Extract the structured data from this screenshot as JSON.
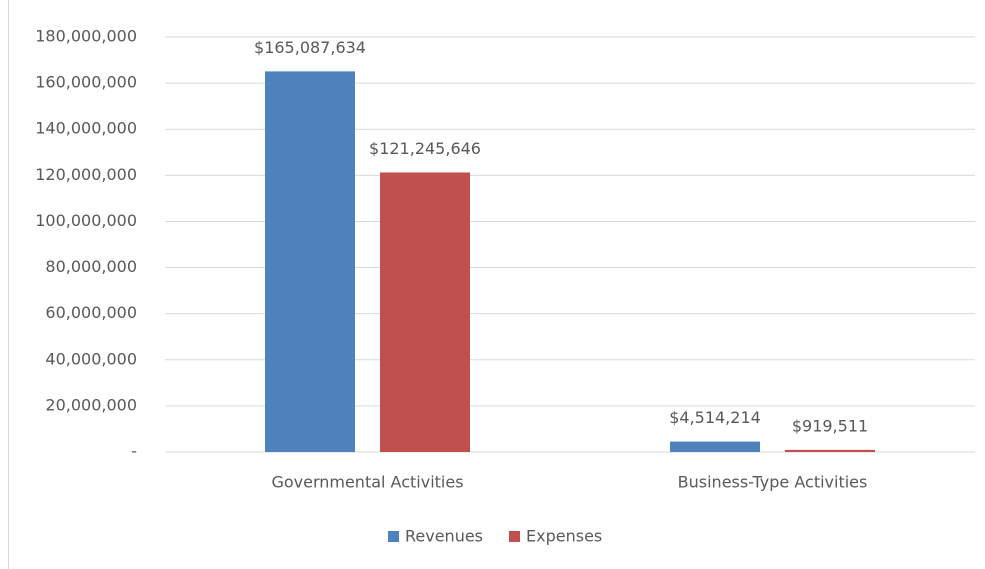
{
  "chart_data": {
    "type": "bar",
    "categories": [
      "Governmental Activities",
      "Business-Type Activities"
    ],
    "series": [
      {
        "name": "Revenues",
        "color": "#4f81bd",
        "values": [
          165087634,
          4514214
        ],
        "value_labels": [
          "$165,087,634",
          "$4,514,214"
        ]
      },
      {
        "name": "Expenses",
        "color": "#c0504d",
        "values": [
          121245646,
          919511
        ],
        "value_labels": [
          "$121,245,646",
          "$919,511"
        ]
      }
    ],
    "ylim": [
      0,
      180000000
    ],
    "yticks": [
      {
        "value": 0,
        "label": "-"
      },
      {
        "value": 20000000,
        "label": "20,000,000"
      },
      {
        "value": 40000000,
        "label": "40,000,000"
      },
      {
        "value": 60000000,
        "label": "60,000,000"
      },
      {
        "value": 80000000,
        "label": "80,000,000"
      },
      {
        "value": 100000000,
        "label": "100,000,000"
      },
      {
        "value": 120000000,
        "label": "120,000,000"
      },
      {
        "value": 140000000,
        "label": "140,000,000"
      },
      {
        "value": 160000000,
        "label": "160,000,000"
      },
      {
        "value": 180000000,
        "label": "180,000,000"
      }
    ],
    "grid": true,
    "legend": "bottom"
  }
}
